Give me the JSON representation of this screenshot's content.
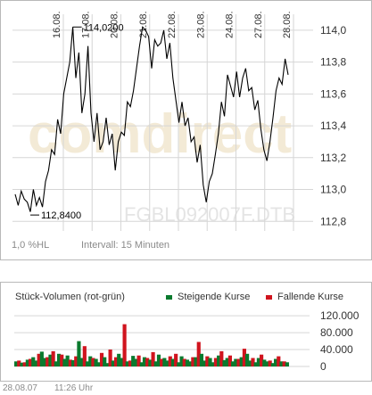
{
  "price_chart": {
    "watermark_brand": "comdirect",
    "symbol": "FGBL092007F.DTB",
    "scale_label": "1,0 %HL",
    "interval_label": "Intervall: 15 Minuten",
    "max_label": "114,0200",
    "min_label": "112,8400"
  },
  "volume_chart": {
    "title": "Stück-Volumen (rot-grün)",
    "legend_rising": "Steigende Kurse",
    "legend_falling": "Fallende Kurse"
  },
  "footer": {
    "date": "28.08.07",
    "time": "11:26 Uhr"
  },
  "colors": {
    "rising": "#0a7a2e",
    "falling": "#d0141e",
    "line": "#000000",
    "grid": "#d6d6d6"
  },
  "chart_data": [
    {
      "type": "line",
      "x_ticks": [
        "16.08.",
        "17.08.",
        "20.08.",
        "21.08.",
        "22.08.",
        "23.08.",
        "24.08.",
        "27.08.",
        "28.08."
      ],
      "y_ticks": [
        "114,0",
        "113,8",
        "113,6",
        "113,4",
        "113,2",
        "113,0",
        "112,8"
      ],
      "ylim": [
        112.74,
        114.1
      ],
      "series": [
        {
          "values": [
            112.97,
            112.9,
            112.99,
            112.94,
            112.92,
            112.86,
            113.0,
            112.9,
            112.95,
            112.89,
            113.05,
            113.12,
            113.25,
            113.22,
            113.44,
            113.35,
            113.6,
            113.7,
            113.8,
            114.02,
            113.7,
            113.86,
            113.48,
            113.6,
            113.9,
            113.48,
            113.3,
            113.48,
            113.25,
            113.3,
            113.45,
            113.28,
            113.35,
            113.12,
            113.3,
            113.36,
            113.34,
            113.55,
            113.52,
            113.62,
            113.76,
            113.9,
            114.02,
            114.0,
            113.96,
            113.76,
            113.94,
            113.9,
            113.92,
            114.0,
            113.82,
            113.92,
            113.7,
            113.56,
            113.42,
            113.55,
            113.4,
            113.45,
            113.3,
            113.33,
            113.17,
            113.28,
            113.03,
            112.92,
            113.05,
            113.1,
            113.22,
            113.35,
            113.55,
            113.46,
            113.72,
            113.65,
            113.58,
            113.74,
            113.58,
            113.7,
            113.76,
            113.62,
            113.64,
            113.5,
            113.56,
            113.38,
            113.25,
            113.18,
            113.3,
            113.45,
            113.62,
            113.7,
            113.66,
            113.82,
            113.72
          ]
        }
      ],
      "annotations": [
        {
          "label": "114,0200",
          "value": 114.02
        },
        {
          "label": "112,8400",
          "value": 112.84
        }
      ]
    },
    {
      "type": "bar",
      "y_ticks": [
        "120.000",
        "80.000",
        "40.000",
        "0"
      ],
      "ylim": [
        0,
        135000
      ],
      "series": [
        {
          "name": "Steigende Kurse",
          "color": "#0a7a2e",
          "values": [
            12000,
            0,
            9000,
            0,
            16000,
            0,
            22000,
            14000,
            0,
            35000,
            20000,
            0,
            28000,
            0,
            12000,
            30000,
            0,
            18000,
            26000,
            0,
            15000,
            0,
            60000,
            20000,
            0,
            12000,
            24000,
            0,
            18000,
            10000,
            0,
            22000,
            8000,
            0,
            14000,
            0,
            30000,
            20000,
            0,
            12000,
            0,
            25000,
            18000,
            0,
            10000,
            22000,
            0,
            16000,
            0,
            12000,
            28000,
            0,
            20000,
            14000,
            0,
            18000,
            0,
            10000,
            24000,
            0,
            16000,
            12000,
            0,
            22000,
            0,
            30000,
            14000,
            0,
            20000,
            10000,
            0,
            26000,
            0,
            15000,
            20000,
            0,
            12000,
            18000,
            0,
            22000,
            0,
            30000,
            14000,
            0,
            10000,
            20000,
            0,
            16000,
            12000,
            0,
            8000,
            18000,
            0,
            12000,
            0,
            10000
          ]
        },
        {
          "name": "Fallende Kurse",
          "color": "#d0141e",
          "values": [
            0,
            14000,
            0,
            10000,
            0,
            18000,
            0,
            0,
            30000,
            0,
            0,
            22000,
            0,
            36000,
            0,
            0,
            28000,
            0,
            0,
            16000,
            0,
            24000,
            0,
            0,
            48000,
            0,
            0,
            20000,
            0,
            0,
            32000,
            0,
            0,
            40000,
            0,
            22000,
            0,
            0,
            100000,
            0,
            14000,
            0,
            0,
            26000,
            0,
            0,
            20000,
            0,
            34000,
            0,
            0,
            18000,
            0,
            0,
            24000,
            0,
            30000,
            0,
            0,
            18000,
            0,
            0,
            22000,
            0,
            58000,
            0,
            0,
            24000,
            0,
            0,
            20000,
            0,
            36000,
            0,
            0,
            26000,
            0,
            0,
            18000,
            0,
            42000,
            0,
            0,
            20000,
            0,
            0,
            28000,
            0,
            0,
            14000,
            0,
            0,
            24000,
            0,
            12000,
            0
          ]
        }
      ]
    }
  ]
}
